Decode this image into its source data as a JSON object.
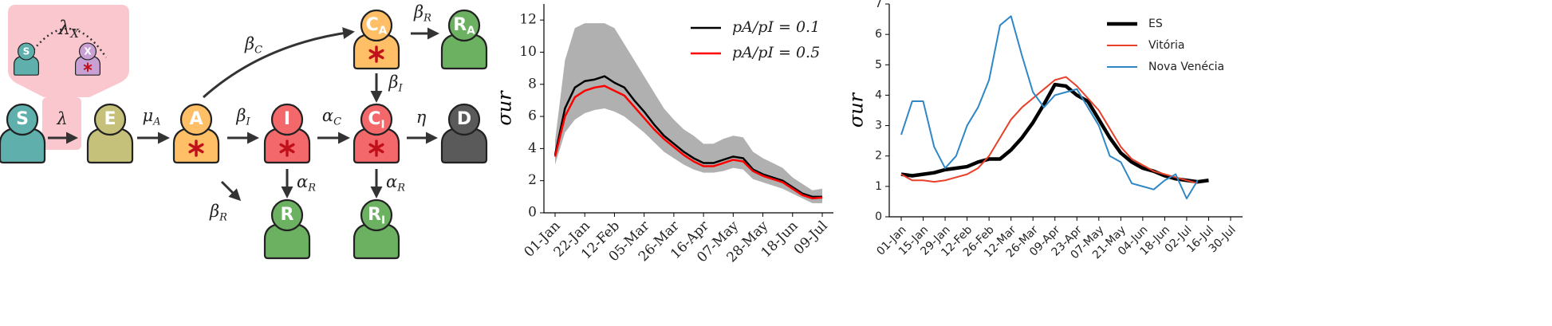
{
  "diagram": {
    "inset": {
      "label": "λ",
      "sub": "X",
      "nodes": [
        {
          "label": "S",
          "color": "#5fb0ac"
        },
        {
          "label": "X",
          "color": "#c9a0d4"
        }
      ]
    },
    "nodes": [
      {
        "label": "S",
        "color": "#5fb0ac"
      },
      {
        "label": "E",
        "color": "#c5c07a"
      },
      {
        "label": "A",
        "color": "#ffbf66"
      },
      {
        "label": "I",
        "color": "#f2686b"
      },
      {
        "label": "C",
        "sub": "I",
        "color": "#f2686b"
      },
      {
        "label": "D",
        "color": "#5a5a5a"
      },
      {
        "label": "C",
        "sub": "A",
        "color": "#ffbf66"
      },
      {
        "label": "R",
        "sub": "A",
        "color": "#6cb062"
      },
      {
        "label": "R",
        "color": "#6cb062"
      },
      {
        "label": "R",
        "sub": "I",
        "color": "#6cb062"
      }
    ],
    "edges": [
      {
        "label": "λ"
      },
      {
        "label": "μ",
        "sub": "A"
      },
      {
        "label": "β",
        "sub": "I"
      },
      {
        "label": "α",
        "sub": "C"
      },
      {
        "label": "η"
      },
      {
        "label": "β",
        "sub": "C"
      },
      {
        "label": "β",
        "sub": "R"
      },
      {
        "label": "β",
        "sub": "I"
      },
      {
        "label": "α",
        "sub": "R"
      },
      {
        "label": "α",
        "sub": "R"
      },
      {
        "label": "β",
        "sub": "R"
      }
    ]
  },
  "chart_data": [
    {
      "type": "line",
      "ylabel": "σur",
      "categories": [
        "01-Jan",
        null,
        null,
        "22-Jan",
        null,
        null,
        "12-Feb",
        null,
        null,
        "05-Mar",
        null,
        null,
        "26-Mar",
        null,
        null,
        "16-Apr",
        null,
        null,
        "07-May",
        null,
        null,
        "28-May",
        null,
        null,
        "18-Jun",
        null,
        null,
        "09-Jul"
      ],
      "band": {
        "color": "#b0b0b0",
        "upper": [
          4.5,
          9.5,
          11.5,
          11.8,
          11.8,
          11.8,
          11.5,
          10.5,
          9.5,
          8.5,
          7.5,
          6.5,
          5.8,
          5.2,
          4.8,
          4.3,
          4.3,
          4.6,
          4.8,
          4.7,
          3.8,
          3.4,
          3.1,
          2.8,
          2.2,
          1.8,
          1.4,
          1.5
        ],
        "lower": [
          3.0,
          5.0,
          5.8,
          6.2,
          6.4,
          6.5,
          6.3,
          6.0,
          5.5,
          5.0,
          4.4,
          3.8,
          3.4,
          3.0,
          2.7,
          2.5,
          2.5,
          2.6,
          2.8,
          2.7,
          2.1,
          1.9,
          1.7,
          1.5,
          1.2,
          0.9,
          0.6,
          0.6
        ]
      },
      "series": [
        {
          "name": "pA/pI = 0.1",
          "color": "#000000",
          "values": [
            3.6,
            6.5,
            7.8,
            8.2,
            8.3,
            8.5,
            8.1,
            7.8,
            7.0,
            6.3,
            5.5,
            4.8,
            4.3,
            3.8,
            3.4,
            3.1,
            3.1,
            3.3,
            3.5,
            3.4,
            2.7,
            2.4,
            2.2,
            2.0,
            1.6,
            1.2,
            1.0,
            1.0
          ]
        },
        {
          "name": "pA/pI = 0.5",
          "color": "#ff0000",
          "values": [
            3.5,
            6.0,
            7.2,
            7.6,
            7.8,
            7.9,
            7.6,
            7.3,
            6.6,
            5.9,
            5.2,
            4.6,
            4.1,
            3.6,
            3.2,
            2.9,
            2.9,
            3.1,
            3.3,
            3.2,
            2.6,
            2.3,
            2.1,
            1.9,
            1.5,
            1.1,
            0.9,
            0.95
          ]
        }
      ],
      "ylim": [
        0,
        13
      ],
      "yticks": [
        0,
        2,
        4,
        6,
        8,
        10,
        12
      ],
      "legend": "upper right"
    },
    {
      "type": "line",
      "ylabel": "σur",
      "categories": [
        "01-Jan",
        null,
        "15-Jan",
        null,
        "29-Jan",
        null,
        "12-Feb",
        null,
        "26-Feb",
        null,
        "12-Mar",
        null,
        "26-Mar",
        null,
        "09-Apr",
        null,
        "23-Apr",
        null,
        "07-May",
        null,
        "21-May",
        null,
        "04-Jun",
        null,
        "18-Jun",
        null,
        "02-Jul",
        null,
        "16-Jul",
        null,
        "30-Jul"
      ],
      "series": [
        {
          "name": "ES",
          "color": "#000000",
          "values": [
            1.4,
            1.35,
            1.4,
            1.45,
            1.55,
            1.6,
            1.65,
            1.8,
            1.9,
            1.9,
            2.2,
            2.6,
            3.1,
            3.7,
            4.35,
            4.3,
            4.0,
            3.8,
            3.2,
            2.6,
            2.1,
            1.8,
            1.6,
            1.5,
            1.35,
            1.25,
            1.2,
            1.15,
            1.2,
            null,
            null
          ]
        },
        {
          "name": "Vitória",
          "color": "#e8402a",
          "values": [
            1.4,
            1.2,
            1.2,
            1.15,
            1.2,
            1.3,
            1.4,
            1.6,
            2.0,
            2.6,
            3.2,
            3.6,
            3.9,
            4.2,
            4.5,
            4.6,
            4.3,
            3.9,
            3.5,
            2.9,
            2.3,
            1.9,
            1.7,
            1.5,
            1.4,
            1.3,
            1.2,
            1.1,
            null,
            null,
            null
          ]
        },
        {
          "name": "Nova Venécia",
          "color": "#2f87c4",
          "values": [
            2.7,
            3.8,
            3.8,
            2.3,
            1.6,
            2.0,
            3.0,
            3.6,
            4.5,
            6.3,
            6.6,
            5.3,
            4.1,
            3.6,
            4.0,
            4.1,
            4.2,
            3.6,
            3.0,
            2.0,
            1.8,
            1.1,
            1.0,
            0.9,
            1.2,
            1.4,
            0.6,
            1.2,
            null,
            null,
            null
          ]
        }
      ],
      "ylim": [
        0,
        7
      ],
      "yticks": [
        0,
        1,
        2,
        3,
        4,
        5,
        6,
        7
      ],
      "legend": "upper right"
    }
  ]
}
